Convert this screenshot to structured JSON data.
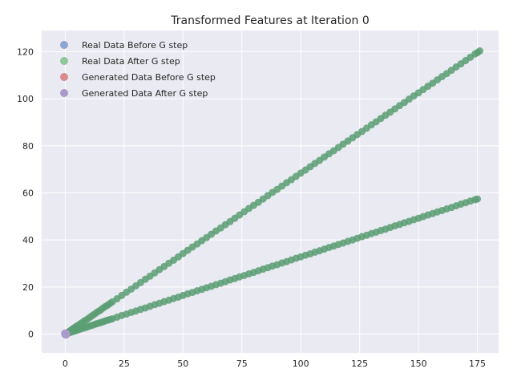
{
  "chart_data": {
    "type": "scatter",
    "title": "Transformed Features at Iteration 0",
    "xlabel": "",
    "ylabel": "",
    "xlim": [
      -10,
      184
    ],
    "ylim": [
      -8,
      129
    ],
    "x_ticks": [
      0,
      25,
      50,
      75,
      100,
      125,
      150,
      175
    ],
    "y_ticks": [
      0,
      20,
      40,
      60,
      80,
      100,
      120
    ],
    "grid": true,
    "legend_position": "top-left",
    "series": [
      {
        "name": "Real Data Before G step",
        "color": "#8ea5cf",
        "points": []
      },
      {
        "name": "Real Data After G step",
        "color": "#8fc79a",
        "points": []
      },
      {
        "name": "Generated Data Before G step",
        "color": "#d98a8e",
        "points": []
      },
      {
        "name": "Generated Data After G step",
        "color": "#a99ac9",
        "points": [
          [
            0.2,
            0.1
          ],
          [
            0.5,
            -0.3
          ],
          [
            -0.2,
            0.4
          ],
          [
            0.1,
            -0.1
          ],
          [
            0.4,
            0.3
          ],
          [
            -0.1,
            -0.2
          ],
          [
            0.3,
            0.5
          ],
          [
            0.0,
            0.0
          ],
          [
            0.6,
            0.1
          ],
          [
            -0.3,
            0.2
          ],
          [
            0.2,
            -0.4
          ],
          [
            0.1,
            0.2
          ]
        ]
      },
      {
        "name": "",
        "color": "#5a9e73",
        "points": [
          [
            0.5,
            0.3
          ],
          [
            1,
            0.6
          ],
          [
            1.5,
            1
          ],
          [
            2,
            1.3
          ],
          [
            2.5,
            1.7
          ],
          [
            3,
            2
          ],
          [
            3.5,
            2.4
          ],
          [
            4,
            2.7
          ],
          [
            4.5,
            3.1
          ],
          [
            5,
            3.4
          ],
          [
            6,
            4.1
          ],
          [
            7,
            4.8
          ],
          [
            8,
            5.5
          ],
          [
            9,
            6.1
          ],
          [
            10,
            6.8
          ],
          [
            11,
            7.5
          ],
          [
            12,
            8.2
          ],
          [
            13,
            8.9
          ],
          [
            14,
            9.6
          ],
          [
            15,
            10.2
          ],
          [
            16,
            11
          ],
          [
            17,
            11.7
          ],
          [
            18,
            12.3
          ],
          [
            19,
            13
          ],
          [
            20,
            13.7
          ],
          [
            22,
            15
          ],
          [
            24,
            16.4
          ],
          [
            26,
            17.8
          ],
          [
            28,
            19.1
          ],
          [
            30,
            20.5
          ],
          [
            32,
            21.9
          ],
          [
            34,
            23.3
          ],
          [
            36,
            24.6
          ],
          [
            38,
            26
          ],
          [
            40,
            27.4
          ],
          [
            42,
            28.7
          ],
          [
            44,
            30.1
          ],
          [
            46,
            31.4
          ],
          [
            48,
            32.8
          ],
          [
            50,
            34.2
          ],
          [
            52,
            35.6
          ],
          [
            54,
            37
          ],
          [
            56,
            38.3
          ],
          [
            58,
            39.7
          ],
          [
            60,
            41
          ],
          [
            62,
            42.4
          ],
          [
            64,
            43.8
          ],
          [
            66,
            45.1
          ],
          [
            68,
            46.5
          ],
          [
            70,
            47.8
          ],
          [
            72,
            49.2
          ],
          [
            74,
            50.6
          ],
          [
            76,
            52
          ],
          [
            78,
            53.4
          ],
          [
            80,
            54.7
          ],
          [
            82,
            56
          ],
          [
            84,
            57.4
          ],
          [
            86,
            58.8
          ],
          [
            88,
            60.2
          ],
          [
            90,
            61.5
          ],
          [
            92,
            62.9
          ],
          [
            94,
            64.3
          ],
          [
            96,
            65.6
          ],
          [
            98,
            67
          ],
          [
            100,
            68.4
          ],
          [
            102,
            69.7
          ],
          [
            104,
            71.1
          ],
          [
            106,
            72.5
          ],
          [
            108,
            73.8
          ],
          [
            110,
            75.2
          ],
          [
            112,
            76.6
          ],
          [
            114,
            77.9
          ],
          [
            116,
            79.3
          ],
          [
            118,
            80.7
          ],
          [
            120,
            82
          ],
          [
            122,
            83.4
          ],
          [
            124,
            84.8
          ],
          [
            126,
            86.1
          ],
          [
            128,
            87.5
          ],
          [
            130,
            88.9
          ],
          [
            132,
            90.2
          ],
          [
            134,
            91.6
          ],
          [
            136,
            93
          ],
          [
            138,
            94.3
          ],
          [
            140,
            95.7
          ],
          [
            142,
            97.1
          ],
          [
            144,
            98.4
          ],
          [
            146,
            99.8
          ],
          [
            148,
            101.2
          ],
          [
            150,
            102.5
          ],
          [
            152,
            103.9
          ],
          [
            154,
            105.3
          ],
          [
            156,
            106.6
          ],
          [
            158,
            108
          ],
          [
            160,
            109.4
          ],
          [
            162,
            110.7
          ],
          [
            164,
            112.1
          ],
          [
            166,
            113.5
          ],
          [
            168,
            114.8
          ],
          [
            170,
            116.2
          ],
          [
            172,
            117.6
          ],
          [
            174,
            119
          ],
          [
            175,
            119.6
          ],
          [
            176,
            120.3
          ]
        ]
      },
      {
        "name": "",
        "color": "#5a9e73",
        "points": [
          [
            0.5,
            0.15
          ],
          [
            1,
            0.3
          ],
          [
            1.5,
            0.5
          ],
          [
            2,
            0.65
          ],
          [
            3,
            1
          ],
          [
            4,
            1.3
          ],
          [
            5,
            1.6
          ],
          [
            6,
            2
          ],
          [
            7,
            2.3
          ],
          [
            8,
            2.6
          ],
          [
            9,
            2.9
          ],
          [
            10,
            3.3
          ],
          [
            11,
            3.6
          ],
          [
            12,
            3.9
          ],
          [
            13,
            4.3
          ],
          [
            14,
            4.6
          ],
          [
            15,
            4.9
          ],
          [
            16,
            5.2
          ],
          [
            17,
            5.6
          ],
          [
            18,
            5.9
          ],
          [
            19,
            6.2
          ],
          [
            20,
            6.5
          ],
          [
            22,
            7.2
          ],
          [
            24,
            7.9
          ],
          [
            26,
            8.5
          ],
          [
            28,
            9.2
          ],
          [
            30,
            9.8
          ],
          [
            32,
            10.5
          ],
          [
            34,
            11.1
          ],
          [
            36,
            11.8
          ],
          [
            38,
            12.5
          ],
          [
            40,
            13.1
          ],
          [
            42,
            13.8
          ],
          [
            44,
            14.4
          ],
          [
            46,
            15.1
          ],
          [
            48,
            15.7
          ],
          [
            50,
            16.4
          ],
          [
            52,
            17.1
          ],
          [
            54,
            17.7
          ],
          [
            56,
            18.4
          ],
          [
            58,
            19
          ],
          [
            60,
            19.7
          ],
          [
            62,
            20.3
          ],
          [
            64,
            21
          ],
          [
            66,
            21.6
          ],
          [
            68,
            22.3
          ],
          [
            70,
            23
          ],
          [
            72,
            23.6
          ],
          [
            74,
            24.3
          ],
          [
            76,
            24.9
          ],
          [
            78,
            25.6
          ],
          [
            80,
            26.2
          ],
          [
            82,
            26.9
          ],
          [
            84,
            27.6
          ],
          [
            86,
            28.2
          ],
          [
            88,
            28.9
          ],
          [
            90,
            29.5
          ],
          [
            92,
            30.2
          ],
          [
            94,
            30.8
          ],
          [
            96,
            31.5
          ],
          [
            98,
            32.2
          ],
          [
            100,
            32.8
          ],
          [
            102,
            33.5
          ],
          [
            104,
            34.1
          ],
          [
            106,
            34.8
          ],
          [
            108,
            35.4
          ],
          [
            110,
            36.1
          ],
          [
            112,
            36.8
          ],
          [
            114,
            37.4
          ],
          [
            116,
            38.1
          ],
          [
            118,
            38.7
          ],
          [
            120,
            39.4
          ],
          [
            122,
            40
          ],
          [
            124,
            40.7
          ],
          [
            126,
            41.4
          ],
          [
            128,
            42
          ],
          [
            130,
            42.7
          ],
          [
            132,
            43.3
          ],
          [
            134,
            44
          ],
          [
            136,
            44.6
          ],
          [
            138,
            45.3
          ],
          [
            140,
            46
          ],
          [
            142,
            46.6
          ],
          [
            144,
            47.3
          ],
          [
            146,
            47.9
          ],
          [
            148,
            48.6
          ],
          [
            150,
            49.2
          ],
          [
            152,
            49.9
          ],
          [
            154,
            50.6
          ],
          [
            156,
            51.2
          ],
          [
            158,
            51.9
          ],
          [
            160,
            52.5
          ],
          [
            162,
            53.2
          ],
          [
            164,
            53.8
          ],
          [
            166,
            54.5
          ],
          [
            168,
            55.2
          ],
          [
            170,
            55.8
          ],
          [
            172,
            56.5
          ],
          [
            174,
            57.1
          ],
          [
            175,
            57.4
          ]
        ]
      }
    ]
  }
}
